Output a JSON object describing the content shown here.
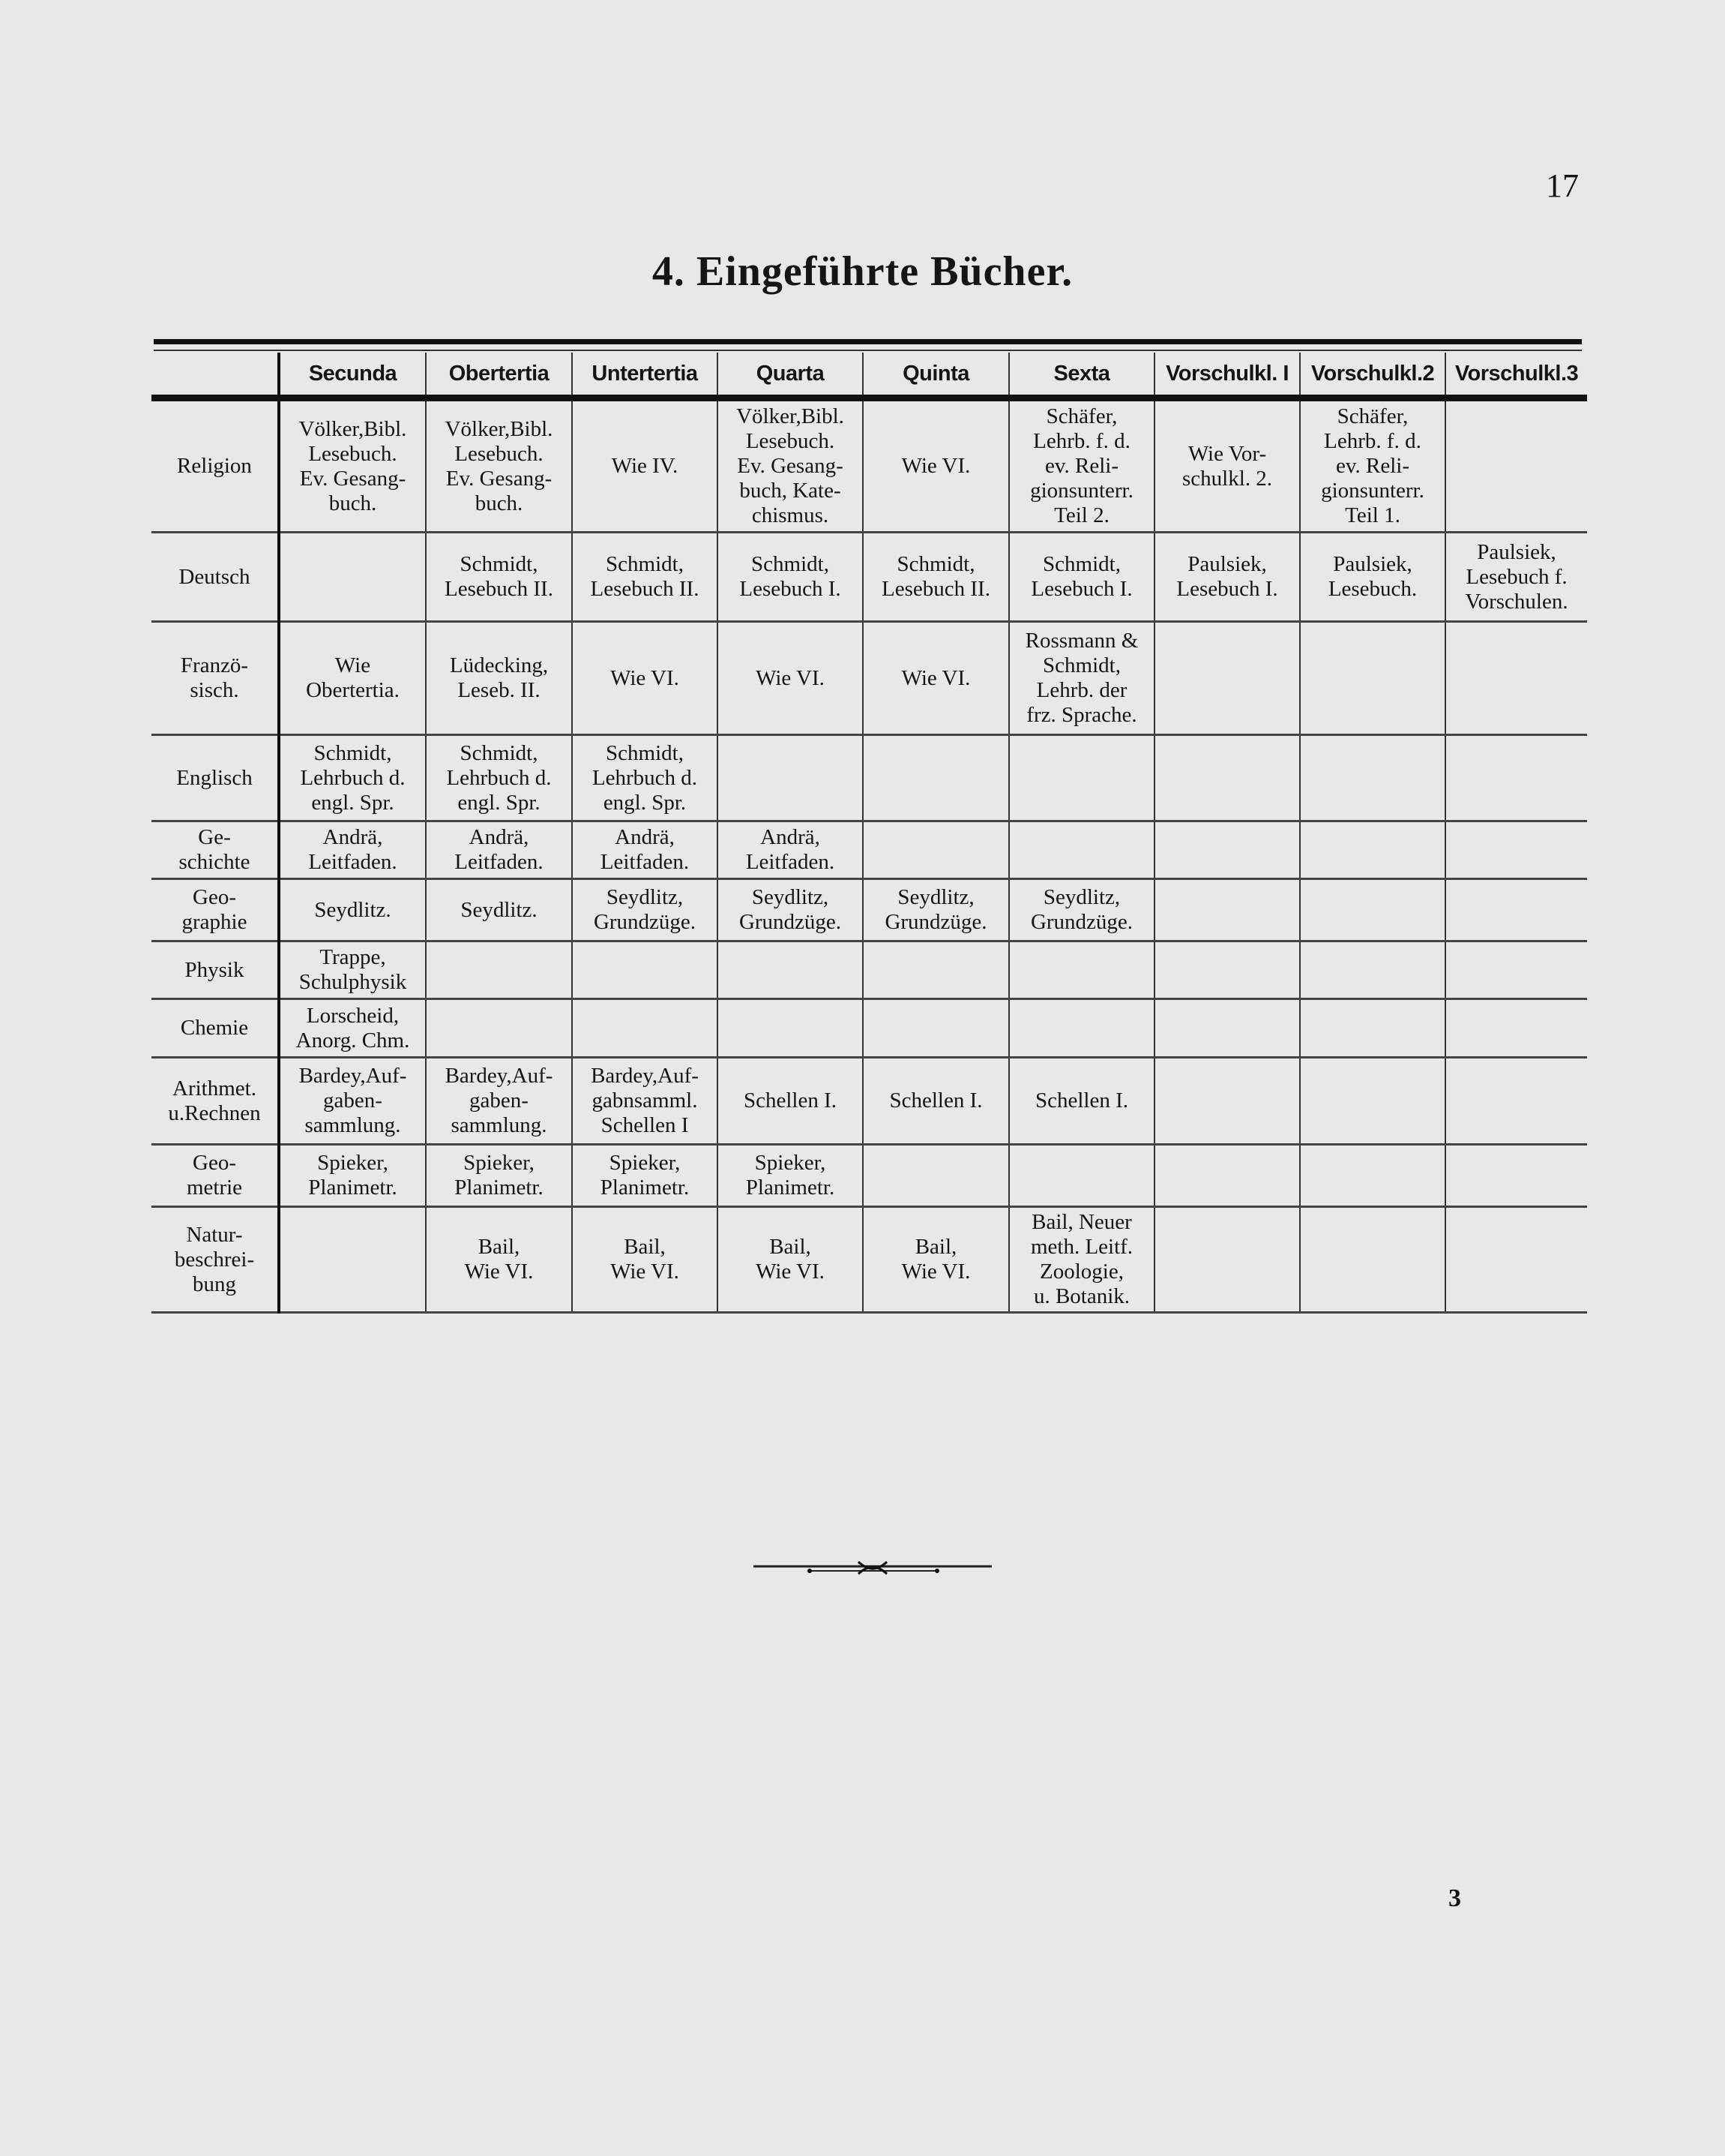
{
  "page_number": "17",
  "title": "4. Eingeführte Bücher.",
  "footer_signature": "3",
  "table": {
    "columns": [
      "",
      "Secunda",
      "Obertertia",
      "Untertertia",
      "Quarta",
      "Quinta",
      "Sexta",
      "Vorschulkl. I",
      "Vorschulkl.2",
      "Vorschulkl.3"
    ],
    "rows": [
      {
        "subject": "Religion",
        "cells": [
          "Völker,Bibl.\nLesebuch.\nEv. Gesang-\nbuch.",
          "Völker,Bibl.\nLesebuch.\nEv. Gesang-\nbuch.",
          "Wie IV.",
          "Völker,Bibl.\nLesebuch.\nEv. Gesang-\nbuch, Kate-\nchismus.",
          "Wie VI.",
          "Schäfer,\nLehrb. f. d.\nev. Reli-\ngionsunterr.\nTeil 2.",
          "Wie Vor-\nschulkl. 2.",
          "Schäfer,\nLehrb. f. d.\nev. Reli-\ngionsunterr.\nTeil 1.",
          ""
        ]
      },
      {
        "subject": "Deutsch",
        "cells": [
          "",
          "Schmidt,\nLesebuch II.",
          "Schmidt,\nLesebuch II.",
          "Schmidt,\nLesebuch I.",
          "Schmidt,\nLesebuch II.",
          "Schmidt,\nLesebuch I.",
          "Paulsiek,\nLesebuch I.",
          "Paulsiek,\nLesebuch.",
          "Paulsiek,\nLesebuch f.\nVorschulen."
        ]
      },
      {
        "subject": "Franzö-\nsisch.",
        "cells": [
          "Wie\nObertertia.",
          "Lüdecking,\nLeseb. II.",
          "Wie VI.",
          "Wie VI.",
          "Wie VI.",
          "Rossmann &\nSchmidt,\nLehrb. der\nfrz. Sprache.",
          "",
          "",
          ""
        ]
      },
      {
        "subject": "Englisch",
        "cells": [
          "Schmidt,\nLehrbuch d.\nengl. Spr.",
          "Schmidt,\nLehrbuch d.\nengl. Spr.",
          "Schmidt,\nLehrbuch d.\nengl. Spr.",
          "",
          "",
          "",
          "",
          "",
          ""
        ]
      },
      {
        "subject": "Ge-\nschichte",
        "cells": [
          "Andrä,\nLeitfaden.",
          "Andrä,\nLeitfaden.",
          "Andrä,\nLeitfaden.",
          "Andrä,\nLeitfaden.",
          "",
          "",
          "",
          "",
          ""
        ]
      },
      {
        "subject": "Geo-\ngraphie",
        "cells": [
          "Seydlitz.",
          "Seydlitz.",
          "Seydlitz,\nGrundzüge.",
          "Seydlitz,\nGrundzüge.",
          "Seydlitz,\nGrundzüge.",
          "Seydlitz,\nGrundzüge.",
          "",
          "",
          ""
        ]
      },
      {
        "subject": "Physik",
        "cells": [
          "Trappe,\nSchulphysik",
          "",
          "",
          "",
          "",
          "",
          "",
          "",
          ""
        ]
      },
      {
        "subject": "Chemie",
        "cells": [
          "Lorscheid,\nAnorg. Chm.",
          "",
          "",
          "",
          "",
          "",
          "",
          "",
          ""
        ]
      },
      {
        "subject": "Arithmet.\nu.Rechnen",
        "cells": [
          "Bardey,Auf-\ngaben-\nsammlung.",
          "Bardey,Auf-\ngaben-\nsammlung.",
          "Bardey,Auf-\ngabnsamml.\nSchellen I",
          "Schellen I.",
          "Schellen I.",
          "Schellen I.",
          "",
          "",
          ""
        ]
      },
      {
        "subject": "Geo-\nmetrie",
        "cells": [
          "Spieker,\nPlanimetr.",
          "Spieker,\nPlanimetr.",
          "Spieker,\nPlanimetr.",
          "Spieker,\nPlanimetr.",
          "",
          "",
          "",
          "",
          ""
        ]
      },
      {
        "subject": "Natur-\nbeschrei-\nbung",
        "cells": [
          "",
          "Bail,\nWie VI.",
          "Bail,\nWie VI.",
          "Bail,\nWie VI.",
          "Bail,\nWie VI.",
          "Bail, Neuer\nmeth. Leitf.\nZoologie,\nu. Botanik.",
          "",
          "",
          ""
        ]
      }
    ]
  },
  "colors": {
    "paper": "#e8e8e7",
    "ink": "#151515"
  }
}
